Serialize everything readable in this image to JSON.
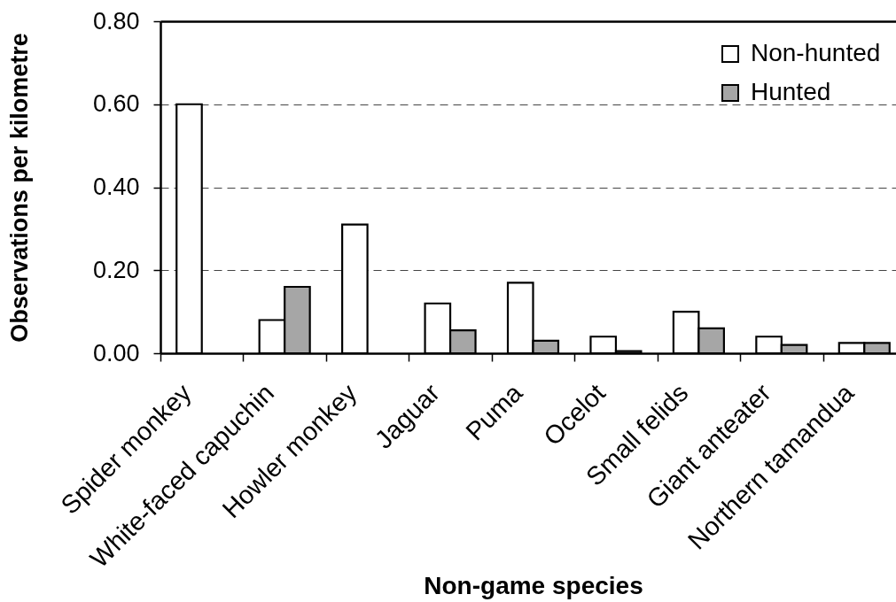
{
  "chart_data": {
    "type": "bar",
    "xlabel": "Non-game species",
    "ylabel": "Observations per kilometre",
    "categories": [
      "Spider monkey",
      "White-faced capuchin",
      "Howler monkey",
      "Jaguar",
      "Puma",
      "Ocelot",
      "Small felids",
      "Giant anteater",
      "Northern tamandua"
    ],
    "series": [
      {
        "name": "Non-hunted",
        "color": "#ffffff",
        "values": [
          0.6,
          0.08,
          0.31,
          0.12,
          0.17,
          0.04,
          0.1,
          0.04,
          0.025
        ]
      },
      {
        "name": "Hunted",
        "color": "#a6a6a6",
        "values": [
          null,
          0.16,
          null,
          0.055,
          0.03,
          0.005,
          0.06,
          0.02,
          0.025
        ]
      }
    ],
    "ylim": [
      0,
      0.8
    ],
    "yticks": [
      {
        "value": 0,
        "label": "0.00"
      },
      {
        "value": 0.2,
        "label": "0.20"
      },
      {
        "value": 0.4,
        "label": "0.40"
      },
      {
        "value": 0.6,
        "label": "0.60"
      },
      {
        "value": 0.8,
        "label": "0.80"
      }
    ],
    "grid": "y",
    "legend": "top right"
  }
}
